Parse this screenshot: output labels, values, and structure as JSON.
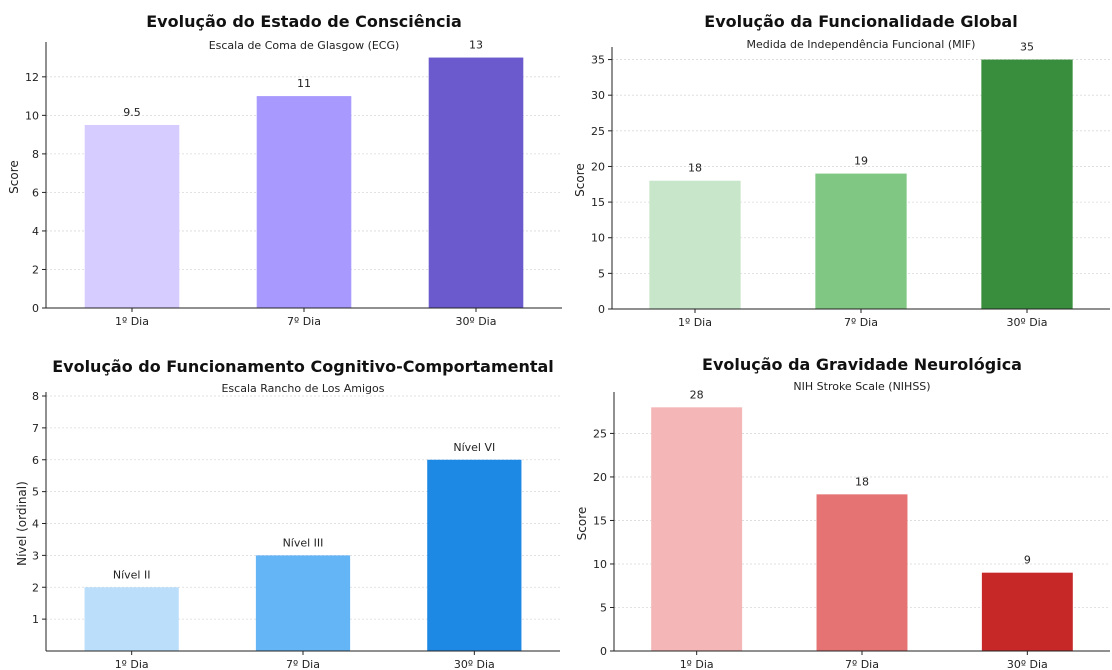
{
  "chart_data": [
    {
      "type": "bar",
      "title": "Evolução do Estado de Consciência",
      "subtitle": "Escala de Coma de Glasgow (ECG)",
      "ylabel": "Score",
      "categories": [
        "1º Dia",
        "7º Dia",
        "30º Dia"
      ],
      "values": [
        9.5,
        11,
        13
      ],
      "data_labels": [
        "9.5",
        "11",
        "13"
      ],
      "colors": [
        "#d6ccff",
        "#a899ff",
        "#6a5acd"
      ],
      "ylim": [
        0,
        13.6
      ],
      "yticks": [
        0,
        2,
        4,
        6,
        8,
        10,
        12
      ],
      "grid": true
    },
    {
      "type": "bar",
      "title": "Evolução da Funcionalidade Global",
      "subtitle": "Medida de Independência Funcional (MIF)",
      "ylabel": "Score",
      "categories": [
        "1º Dia",
        "7º Dia",
        "30º Dia"
      ],
      "values": [
        18,
        19,
        35
      ],
      "data_labels": [
        "18",
        "19",
        "35"
      ],
      "colors": [
        "#c8e6c9",
        "#81c784",
        "#388e3c"
      ],
      "ylim": [
        0,
        36.2
      ],
      "yticks": [
        0,
        5,
        10,
        15,
        20,
        25,
        30,
        35
      ],
      "grid": true
    },
    {
      "type": "bar",
      "title": "Evolução do Funcionamento Cognitivo-Comportamental",
      "subtitle": "Escala Rancho de Los Amigos",
      "ylabel": "Nível (ordinal)",
      "categories": [
        "1º Dia",
        "7º Dia",
        "30º Dia"
      ],
      "values": [
        2,
        3,
        6
      ],
      "data_labels": [
        "Nível II",
        "Nível III",
        "Nível VI"
      ],
      "colors": [
        "#bbdefb",
        "#64b5f6",
        "#1e88e5"
      ],
      "ylim": [
        0,
        8
      ],
      "yticks": [
        1,
        2,
        3,
        4,
        5,
        6,
        7,
        8
      ],
      "grid": true
    },
    {
      "type": "bar",
      "title": "Evolução da Gravidade Neurológica",
      "subtitle": "NIH Stroke Scale (NIHSS)",
      "ylabel": "Score",
      "categories": [
        "1º Dia",
        "7º Dia",
        "30º Dia"
      ],
      "values": [
        28,
        18,
        9
      ],
      "data_labels": [
        "28",
        "18",
        "9"
      ],
      "colors": [
        "#f4b6b6",
        "#e57373",
        "#c62828"
      ],
      "ylim": [
        0,
        29.3
      ],
      "yticks": [
        0,
        5,
        10,
        15,
        20,
        25
      ],
      "grid": true
    }
  ]
}
